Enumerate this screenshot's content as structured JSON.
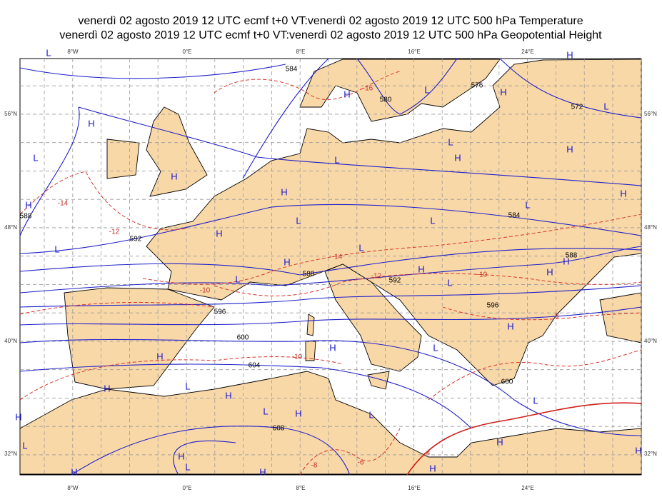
{
  "title_lines": [
    "venerdì 02 agosto 2019 12 UTC ecmf t+0 VT:venerdì 02 agosto 2019 12 UTC 500 hPa  Temperature",
    "venerdì 02 agosto 2019 12 UTC ecmf t+0 VT:venerdì 02 agosto 2019 12 UTC 500 hPa  Geopotential Height"
  ],
  "lon_labels": [
    "8°W",
    "0°E",
    "8°E",
    "16°E",
    "24°E"
  ],
  "lat_labels": [
    "56°N",
    "48°N",
    "40°N",
    "32°N"
  ],
  "height_contour_labels": [
    "584",
    "580",
    "576",
    "572",
    "588",
    "592",
    "596",
    "600",
    "604",
    "608",
    "588",
    "592",
    "584",
    "588",
    "596",
    "600"
  ],
  "temperature_contour_labels": [
    "-16",
    "-14",
    "-12",
    "-10",
    "-14",
    "-12",
    "-10",
    "-8",
    "-10",
    "-8",
    "-6",
    "-4"
  ],
  "pressure_centers": [
    "H",
    "L",
    "H",
    "H",
    "L",
    "H",
    "L",
    "H",
    "H",
    "L",
    "L",
    "H",
    "L",
    "H",
    "H",
    "L",
    "H",
    "L",
    "H",
    "H",
    "L",
    "L",
    "L",
    "H",
    "L",
    "H",
    "H",
    "H",
    "L",
    "H",
    "H",
    "L",
    "H",
    "H",
    "H",
    "L",
    "H",
    "H",
    "L",
    "H",
    "L",
    "H",
    "L",
    "H",
    "H",
    "L",
    "H",
    "L"
  ]
}
